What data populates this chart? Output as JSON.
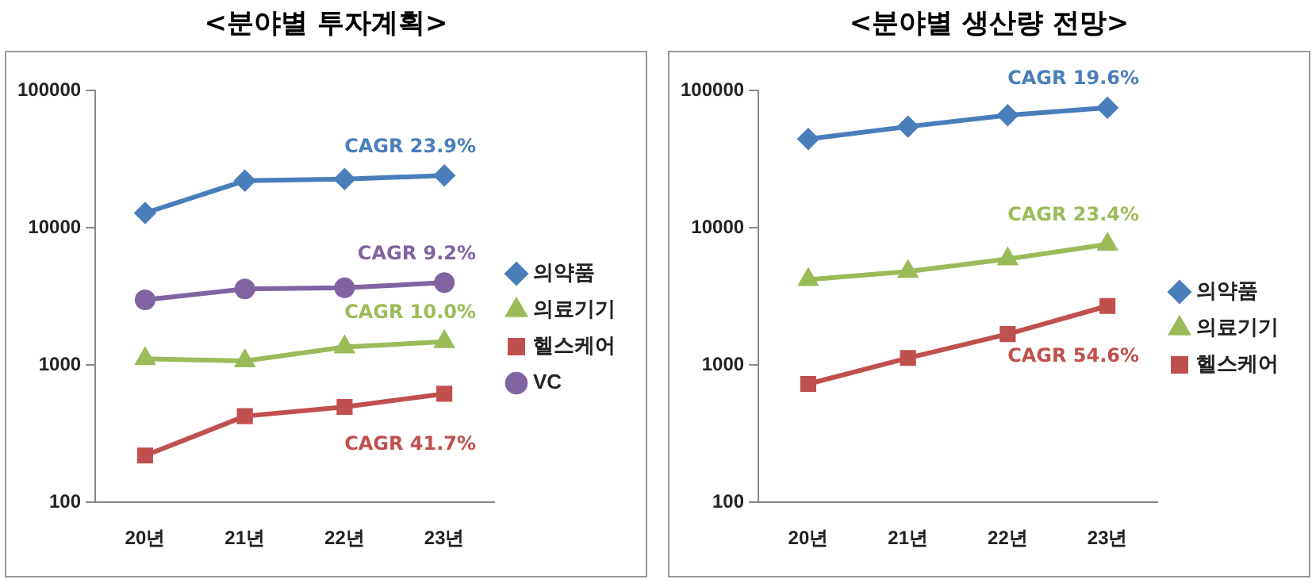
{
  "chart_data": [
    {
      "type": "line",
      "title": "<분야별 투자계획>",
      "categories": [
        "20년",
        "21년",
        "22년",
        "23년"
      ],
      "series": [
        {
          "name": "의약품",
          "color": "#4a7ebb",
          "marker": "diamond",
          "values": [
            12800,
            22000,
            22600,
            24000
          ]
        },
        {
          "name": "의료기기",
          "color": "#9bbb59",
          "marker": "triangle",
          "values": [
            1110,
            1070,
            1350,
            1480
          ]
        },
        {
          "name": "헬스케어",
          "color": "#c0504d",
          "marker": "square",
          "values": [
            219,
            424,
            495,
            617
          ]
        },
        {
          "name": "VC",
          "color": "#8064a2",
          "marker": "circle",
          "values": [
            2980,
            3580,
            3650,
            3980
          ]
        }
      ],
      "annotations": [
        "CAGR 23.9%",
        "CAGR 10.0%",
        "CAGR 41.7%",
        "CAGR 9.2%"
      ],
      "log": true,
      "ylim": [
        100,
        100000
      ],
      "yticks": [
        100,
        1000,
        10000,
        100000
      ],
      "grid": false,
      "legend": "right"
    },
    {
      "type": "line",
      "title": "<분야별 생산량 전망>",
      "categories": [
        "20년",
        "21년",
        "22년",
        "23년"
      ],
      "series": [
        {
          "name": "의약품",
          "color": "#4a7ebb",
          "marker": "diamond",
          "values": [
            44300,
            54500,
            65900,
            74800
          ]
        },
        {
          "name": "의료기기",
          "color": "#9bbb59",
          "marker": "triangle",
          "values": [
            4190,
            4800,
            5910,
            7560
          ]
        },
        {
          "name": "헬스케어",
          "color": "#c0504d",
          "marker": "square",
          "values": [
            728,
            1125,
            1680,
            2690
          ]
        }
      ],
      "annotations": [
        "CAGR 19.6%",
        "CAGR 23.4%",
        "CAGR 54.6%"
      ],
      "log": true,
      "ylim": [
        100,
        100000
      ],
      "yticks": [
        100,
        1000,
        10000,
        100000
      ],
      "grid": false,
      "legend": "right"
    }
  ]
}
